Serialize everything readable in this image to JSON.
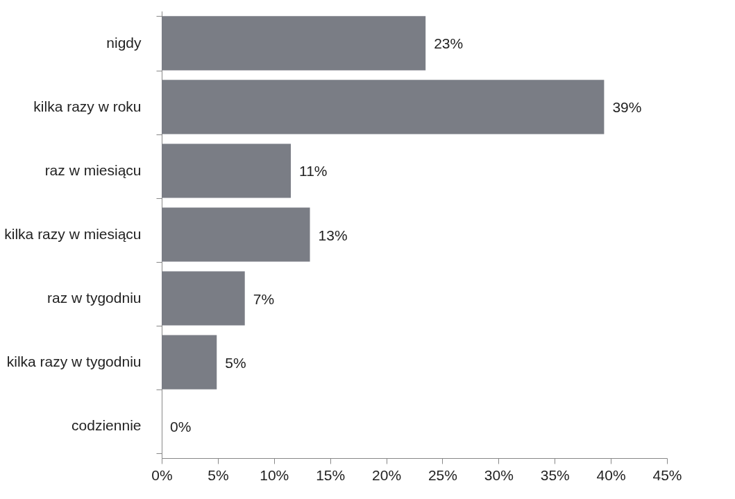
{
  "chart_data": {
    "type": "bar",
    "orientation": "horizontal",
    "categories": [
      "nigdy",
      "kilka razy w roku",
      "raz w miesiącu",
      "kilka razy w miesiącu",
      "raz w tygodniu",
      "kilka razy w tygodniu",
      "codziennie"
    ],
    "values": [
      23.5,
      39.4,
      11.5,
      13.2,
      7.4,
      4.9,
      0
    ],
    "value_labels": [
      "23%",
      "39%",
      "11%",
      "13%",
      "7%",
      "5%",
      "0%"
    ],
    "color": "#7a7d85",
    "xlim": [
      0,
      45
    ],
    "xticks": [
      {
        "value": 0,
        "label": "0%"
      },
      {
        "value": 5,
        "label": "5%"
      },
      {
        "value": 10,
        "label": "10%"
      },
      {
        "value": 15,
        "label": "15%"
      },
      {
        "value": 20,
        "label": "20%"
      },
      {
        "value": 25,
        "label": "25%"
      },
      {
        "value": 30,
        "label": "30%"
      },
      {
        "value": 35,
        "label": "35%"
      },
      {
        "value": 40,
        "label": "40%"
      },
      {
        "value": 45,
        "label": "45%"
      }
    ],
    "grid": false
  }
}
